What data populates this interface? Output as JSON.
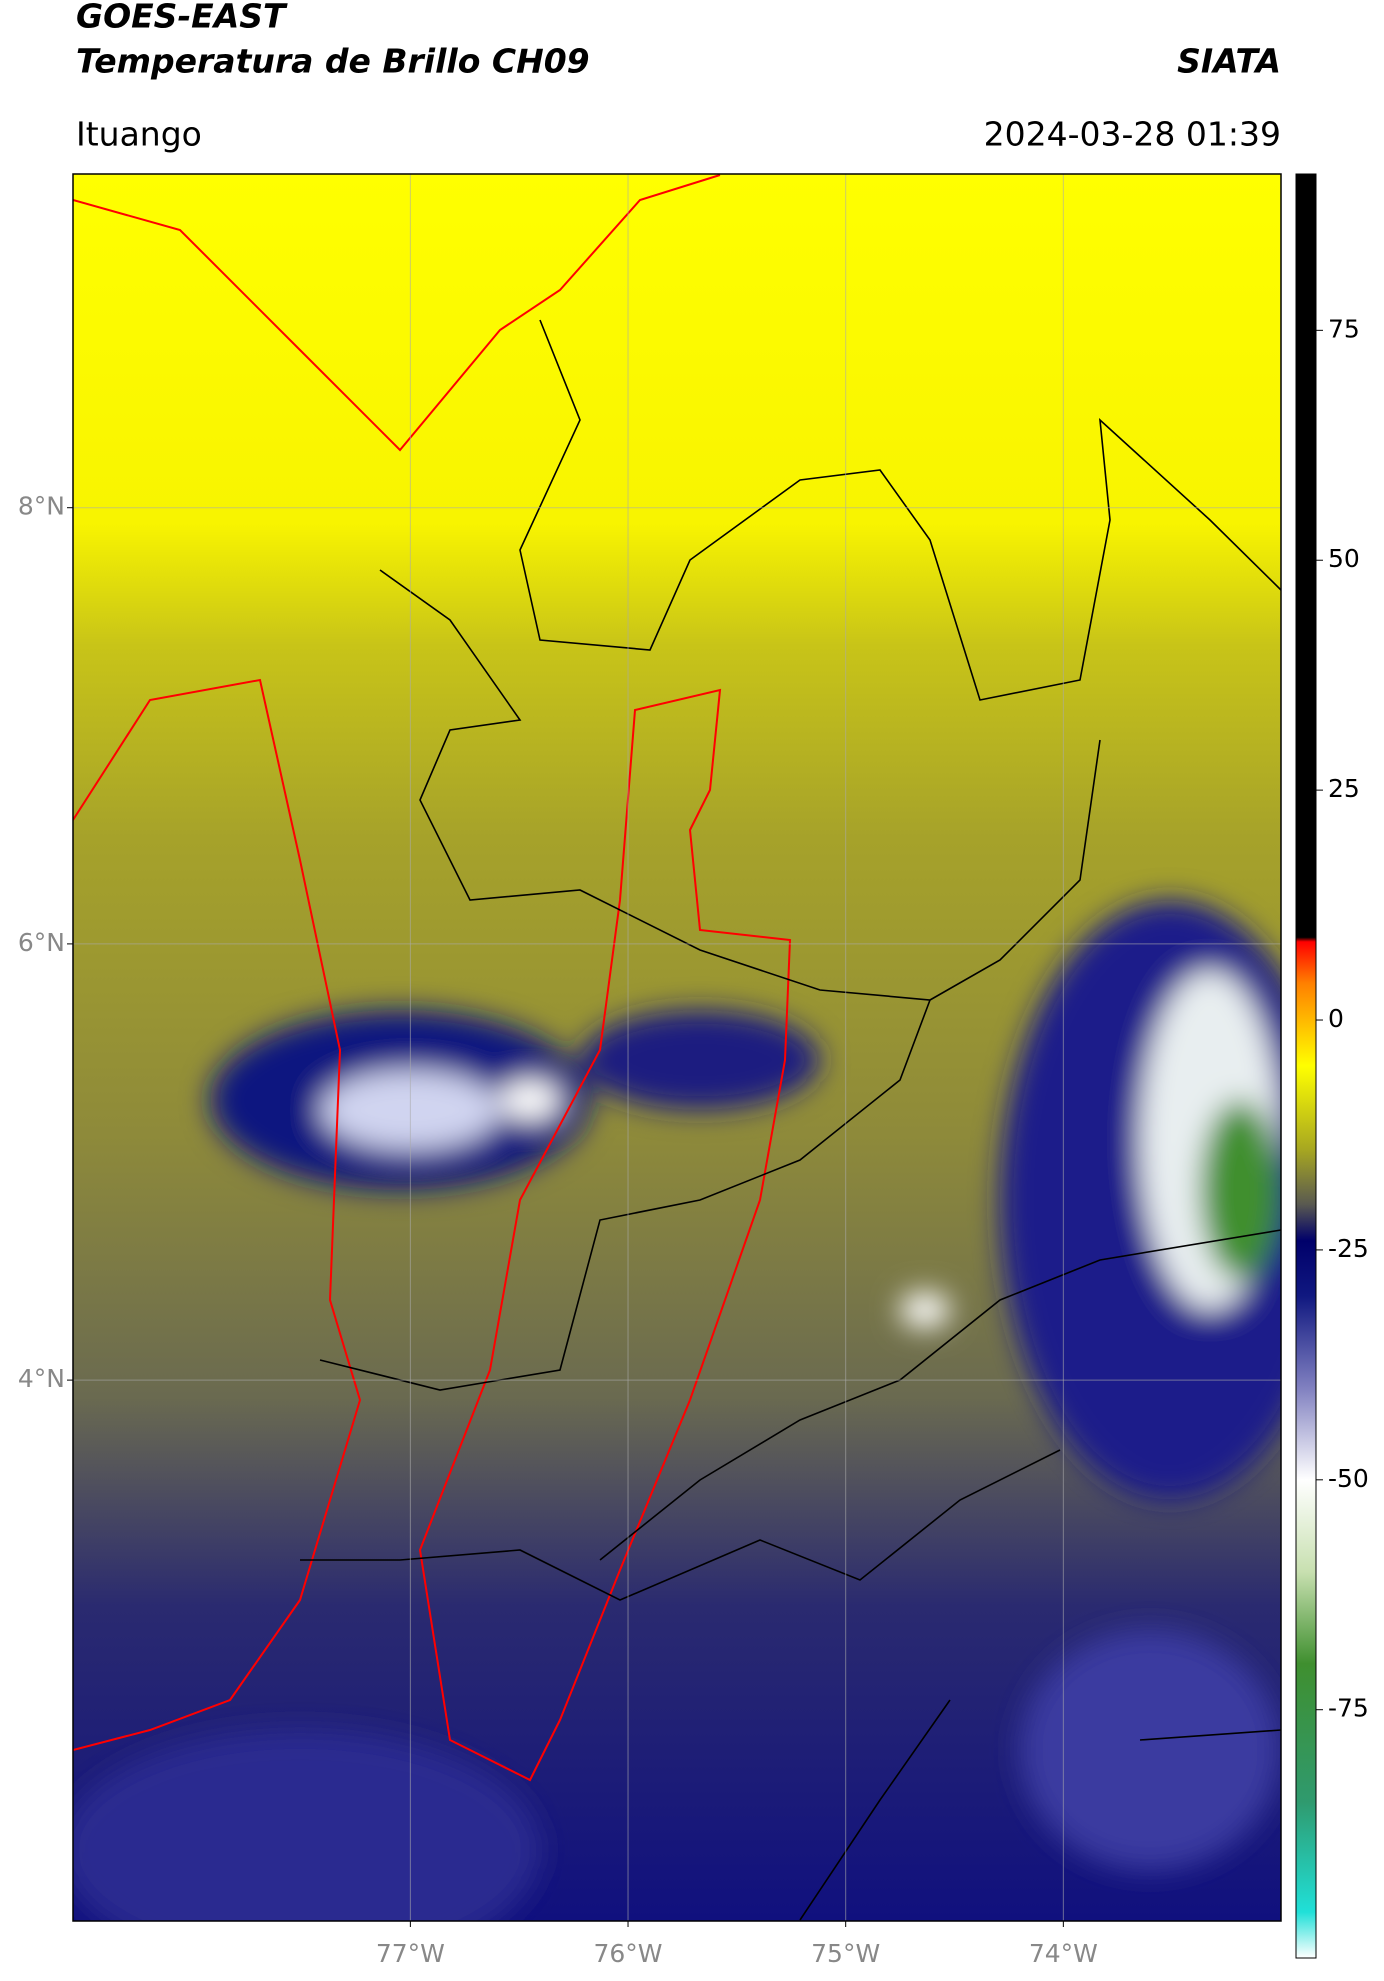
{
  "header": {
    "title": "GOES-EAST",
    "subtitle": "Temperatura de Brillo CH09",
    "source": "SIATA",
    "location": "Ituango",
    "timestamp": "2024-03-28 01:39"
  },
  "map": {
    "type": "map",
    "xlim": [
      -78.55,
      -73.0
    ],
    "ylim": [
      1.52,
      9.53
    ],
    "xticks": [
      {
        "value": -77,
        "label": "77°W"
      },
      {
        "value": -76,
        "label": "76°W"
      },
      {
        "value": -75,
        "label": "75°W"
      },
      {
        "value": -74,
        "label": "74°W"
      }
    ],
    "yticks": [
      {
        "value": 8,
        "label": "8°N"
      },
      {
        "value": 6,
        "label": "6°N"
      },
      {
        "value": 4,
        "label": "4°N"
      }
    ],
    "grid": true
  },
  "colorbar": {
    "lim": [
      -102,
      92
    ],
    "ticks": [
      75,
      50,
      25,
      0,
      -25,
      -50,
      -75
    ],
    "colors": [
      {
        "value": -102,
        "color": "#ffffff"
      },
      {
        "value": -97,
        "color": "#20e0d8"
      },
      {
        "value": -85,
        "color": "#2f9a6e"
      },
      {
        "value": -70,
        "color": "#3f8f2f"
      },
      {
        "value": -60,
        "color": "#c8e0b0"
      },
      {
        "value": -50,
        "color": "#ffffff"
      },
      {
        "value": -40,
        "color": "#8080c0"
      },
      {
        "value": -30,
        "color": "#101880"
      },
      {
        "value": -24,
        "color": "#00006a"
      },
      {
        "value": -20,
        "color": "#5a5a50"
      },
      {
        "value": -14,
        "color": "#a8a820"
      },
      {
        "value": -5,
        "color": "#ffff00"
      },
      {
        "value": 4,
        "color": "#ff8000"
      },
      {
        "value": 8.5,
        "color": "#ff0000"
      },
      {
        "value": 9,
        "color": "#000000"
      },
      {
        "value": 92,
        "color": "#000000"
      }
    ]
  }
}
